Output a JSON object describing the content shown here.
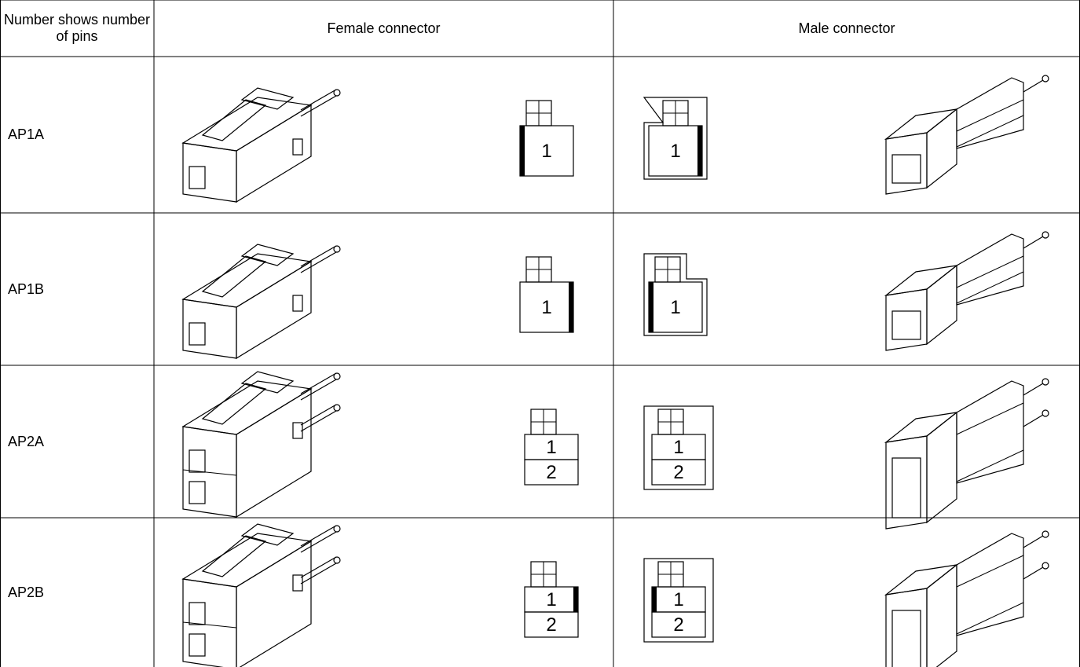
{
  "table": {
    "header": [
      "Number shows number of pins",
      "Female connector",
      "Male connector"
    ],
    "rows": [
      {
        "label": "AP1A",
        "female_pins": [
          "1"
        ],
        "male_pins": [
          "1"
        ]
      },
      {
        "label": "AP1B",
        "female_pins": [
          "1"
        ],
        "male_pins": [
          "1"
        ]
      },
      {
        "label": "AP2A",
        "female_pins": [
          "1",
          "2"
        ],
        "male_pins": [
          "1",
          "2"
        ]
      },
      {
        "label": "AP2B",
        "female_pins": [
          "1",
          "2"
        ],
        "male_pins": [
          "1",
          "2"
        ]
      }
    ]
  }
}
